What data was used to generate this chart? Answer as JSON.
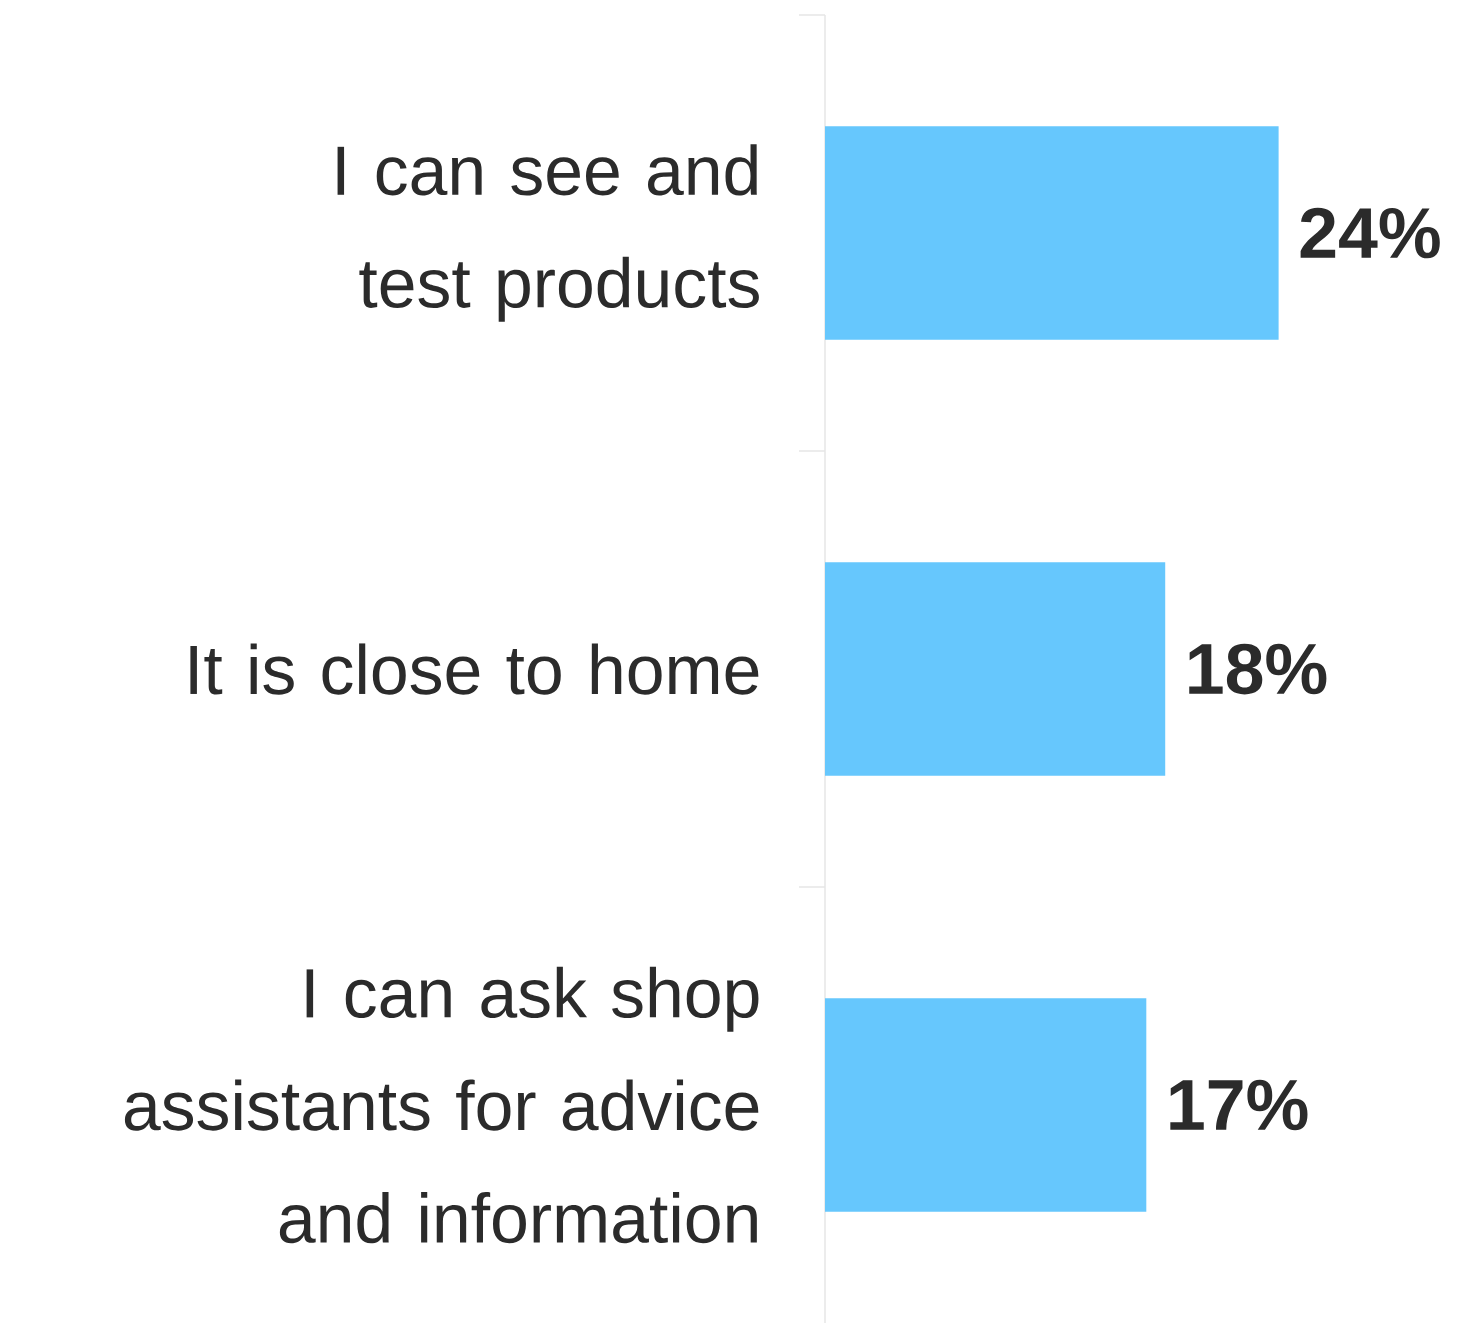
{
  "chart_data": {
    "type": "bar",
    "orientation": "horizontal",
    "categories": [
      "I can see and test products",
      "It is close to home",
      "I can ask shop assistants for advice and information"
    ],
    "values": [
      24,
      18,
      17
    ],
    "value_labels": [
      "24%",
      "18%",
      "17%"
    ],
    "color": "#66c7fd"
  }
}
